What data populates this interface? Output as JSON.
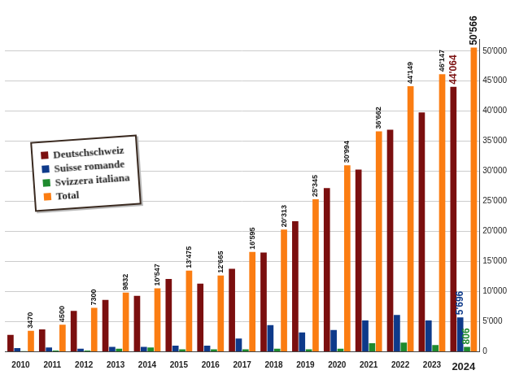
{
  "chart_data": {
    "type": "bar",
    "categories": [
      "2010",
      "2011",
      "2012",
      "2013",
      "2014",
      "2015",
      "2016",
      "2017",
      "2018",
      "2019",
      "2020",
      "2021",
      "2022",
      "2023",
      "2024"
    ],
    "series": [
      {
        "name": "Deutschschweiz",
        "color": "#7b0f0f",
        "values": [
          2800,
          3700,
          6800,
          8600,
          9300,
          12100,
          11300,
          13800,
          16500,
          21700,
          27200,
          30300,
          36900,
          39800,
          44064
        ],
        "value_labels": [
          null,
          null,
          null,
          null,
          null,
          null,
          null,
          null,
          null,
          null,
          null,
          null,
          null,
          null,
          "44'064"
        ]
      },
      {
        "name": "Suisse romande",
        "color": "#0e3a8a",
        "values": [
          600,
          700,
          500,
          800,
          800,
          1000,
          1000,
          2200,
          4400,
          3200,
          3600,
          5200,
          6100,
          5200,
          5696
        ],
        "value_labels": [
          null,
          null,
          null,
          null,
          null,
          null,
          null,
          null,
          null,
          null,
          null,
          null,
          null,
          null,
          "5'696"
        ]
      },
      {
        "name": "Svizzera italiana",
        "color": "#1e8a2e",
        "values": [
          100,
          200,
          200,
          500,
          700,
          400,
          400,
          400,
          500,
          400,
          500,
          1400,
          1500,
          1100,
          806
        ],
        "value_labels": [
          null,
          null,
          null,
          null,
          null,
          null,
          null,
          null,
          null,
          null,
          null,
          null,
          null,
          null,
          "806"
        ]
      },
      {
        "name": "Total",
        "color": "#fb7d12",
        "values": [
          3470,
          4500,
          7300,
          9832,
          10547,
          13475,
          12665,
          16595,
          20313,
          25345,
          30994,
          36662,
          44149,
          46147,
          50566
        ],
        "value_labels": [
          "3470",
          "4500",
          "7300",
          "9832",
          "10'547",
          "13'475",
          "12'665",
          "16'595",
          "20'313",
          "25'345",
          "30'994",
          "36'662",
          "44'149",
          "46'147",
          "50'566"
        ]
      }
    ],
    "ylim": [
      0,
      52000
    ],
    "yticks": [
      0,
      {
        "value": 5000,
        "label": "5'000"
      },
      {
        "value": 10000,
        "label": "10'000"
      },
      {
        "value": 15000,
        "label": "15'000"
      },
      {
        "value": 20000,
        "label": "20'000"
      },
      {
        "value": 25000,
        "label": "25'000"
      },
      {
        "value": 30000,
        "label": "30'000"
      },
      {
        "value": 35000,
        "label": "35'000"
      },
      {
        "value": 40000,
        "label": "40'000"
      },
      {
        "value": 45000,
        "label": "45'000"
      },
      {
        "value": 50000,
        "label": "50'000"
      }
    ],
    "grid": true,
    "legend": "upper left",
    "data_labels": true
  }
}
